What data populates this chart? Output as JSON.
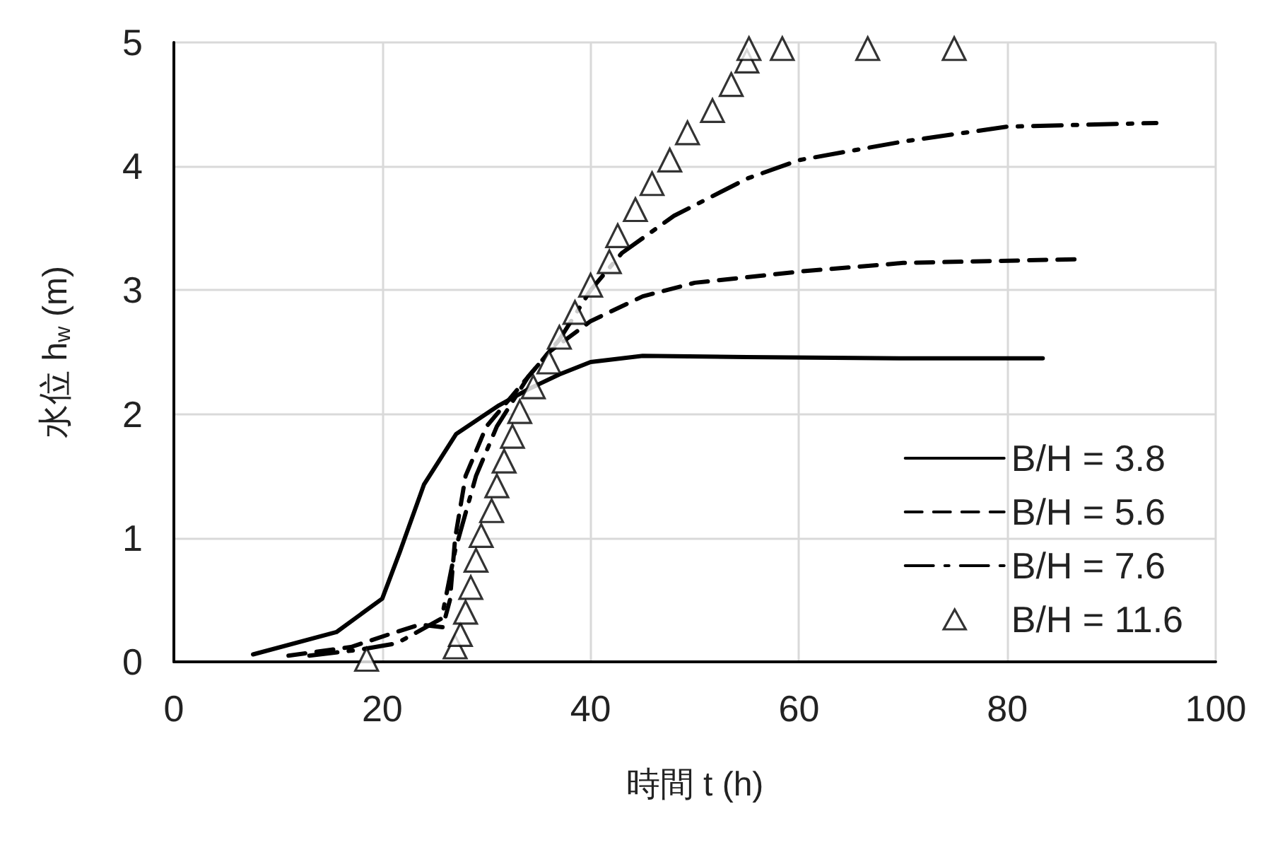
{
  "chart_data": {
    "type": "line",
    "xlabel": "時間 t (h)",
    "ylabel": "水位 h$_{w}$ (m)",
    "xlim": [
      0,
      100
    ],
    "xticks": [
      0,
      20,
      40,
      60,
      80,
      100
    ],
    "ylim": [
      0,
      5
    ],
    "yticks": [
      0,
      1,
      2,
      3,
      4,
      5
    ],
    "grid": true,
    "legend": "bottom right",
    "series": [
      {
        "name": "B/H = 3.8",
        "color": "#000000",
        "line_style": "solid",
        "marker": "none",
        "x": [
          7.6,
          15.6,
          20,
          21.7,
          24,
          27.1,
          31.2,
          34,
          37,
          40,
          45,
          55,
          70,
          83.4
        ],
        "values": [
          0.06,
          0.24,
          0.51,
          0.89,
          1.43,
          1.84,
          2.07,
          2.2,
          2.32,
          2.42,
          2.47,
          2.46,
          2.45,
          2.45
        ]
      },
      {
        "name": "B/H = 5.6",
        "color": "#000000",
        "line_style": "dashed",
        "marker": "none",
        "x": [
          11,
          17,
          21.3,
          23.6,
          25.8,
          26.5,
          27,
          28,
          30,
          33,
          36,
          40,
          45,
          50,
          60,
          70,
          86.7
        ],
        "values": [
          0.05,
          0.12,
          0.24,
          0.3,
          0.28,
          0.5,
          1.0,
          1.5,
          1.9,
          2.2,
          2.5,
          2.75,
          2.95,
          3.06,
          3.15,
          3.22,
          3.25
        ]
      },
      {
        "name": "B/H = 7.6",
        "color": "#000000",
        "line_style": "dashdot",
        "marker": "none",
        "x": [
          13,
          18,
          21.4,
          25.7,
          27,
          29,
          31,
          34,
          37,
          40,
          43,
          48,
          55,
          60,
          70,
          80,
          94.3
        ],
        "values": [
          0.05,
          0.1,
          0.15,
          0.35,
          0.9,
          1.5,
          1.9,
          2.3,
          2.6,
          3.0,
          3.3,
          3.6,
          3.9,
          4.05,
          4.2,
          4.32,
          4.35
        ]
      },
      {
        "name": "B/H = 11.6",
        "type": "scatter",
        "color": "#000000",
        "marker": "triangle",
        "x": [
          18.5,
          27,
          27.5,
          28,
          28.5,
          29,
          29.5,
          30.5,
          31,
          31.7,
          32.5,
          33.2,
          34.5,
          36,
          37,
          38.5,
          40,
          41.8,
          42.6,
          44.3,
          45.9,
          47.6,
          49.3,
          51.7,
          53.5,
          55,
          55.2,
          58.4,
          66.6,
          74.9
        ],
        "values": [
          0.02,
          0.12,
          0.22,
          0.4,
          0.6,
          0.82,
          1.02,
          1.22,
          1.42,
          1.62,
          1.82,
          2.02,
          2.22,
          2.42,
          2.62,
          2.82,
          3.04,
          3.23,
          3.44,
          3.65,
          3.86,
          4.05,
          4.27,
          4.45,
          4.66,
          4.85,
          4.95,
          4.95,
          4.95,
          4.95
        ]
      }
    ]
  }
}
